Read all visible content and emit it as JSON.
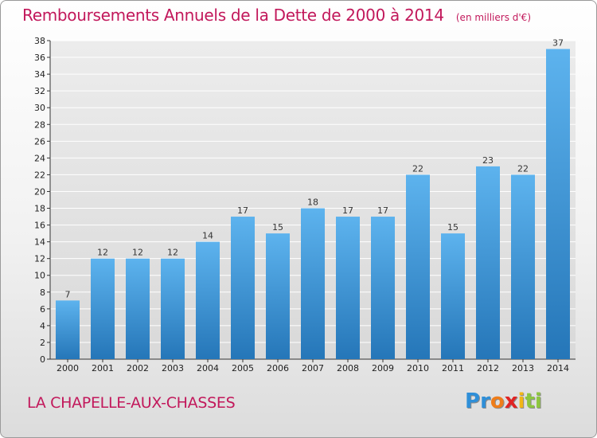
{
  "header": {
    "title": "Remboursements Annuels de la Dette de 2000 à 2014",
    "subtitle": "(en milliers d'€)"
  },
  "footer": {
    "commune": "LA CHAPELLE-AUX-CHASSES",
    "logo_letters": [
      "P",
      "r",
      "o",
      "x",
      "i",
      "t",
      "i"
    ],
    "logo_colors": [
      "#2f8fd8",
      "#2f8fd8",
      "#ef7d1a",
      "#e02424",
      "#f2b616",
      "#8dc63f",
      "#8dc63f"
    ]
  },
  "colors": {
    "bar_top": "#5db3ee",
    "bar_bottom": "#2576b8",
    "title": "#c2185b",
    "grid": "#ffffff"
  },
  "chart_data": {
    "type": "bar",
    "title": "Remboursements Annuels de la Dette de 2000 à 2014",
    "subtitle": "(en milliers d'€)",
    "categories": [
      "2000",
      "2001",
      "2002",
      "2003",
      "2004",
      "2005",
      "2006",
      "2007",
      "2008",
      "2009",
      "2010",
      "2011",
      "2012",
      "2013",
      "2014"
    ],
    "values": [
      7,
      12,
      12,
      12,
      14,
      17,
      15,
      18,
      17,
      17,
      22,
      15,
      23,
      22,
      37
    ],
    "ylim": [
      0,
      38
    ],
    "yticks": [
      0,
      2,
      4,
      6,
      8,
      10,
      12,
      14,
      16,
      18,
      20,
      22,
      24,
      26,
      28,
      30,
      32,
      34,
      36,
      38
    ],
    "xlabel": "",
    "ylabel": "",
    "grid": true,
    "data_labels": true
  }
}
